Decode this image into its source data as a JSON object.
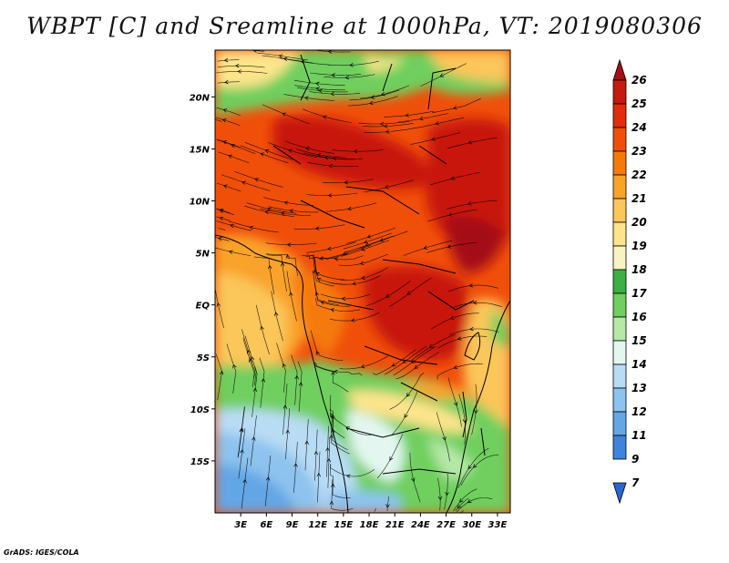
{
  "title": "WBPT [C] and Sreamline at 1000hPa, VT: 2019080306",
  "footer": "GrADS: IGES/COLA",
  "map": {
    "lat_labels": [
      "20N",
      "15N",
      "10N",
      "5N",
      "EQ",
      "5S",
      "10S",
      "15S"
    ],
    "lat_values": [
      20,
      15,
      10,
      5,
      0,
      -5,
      -10,
      -15
    ],
    "lon_labels": [
      "3E",
      "6E",
      "9E",
      "12E",
      "15E",
      "18E",
      "21E",
      "24E",
      "27E",
      "30E",
      "33E"
    ],
    "lon_values": [
      3,
      6,
      9,
      12,
      15,
      18,
      21,
      24,
      27,
      30,
      33
    ],
    "lat_range": [
      -20,
      24.5
    ],
    "lon_range": [
      0,
      34.5
    ]
  },
  "colorbar": {
    "levels": [
      "26",
      "25",
      "24",
      "23",
      "22",
      "21",
      "20",
      "19",
      "18",
      "17",
      "16",
      "15",
      "14",
      "13",
      "12",
      "11",
      "9",
      "7"
    ],
    "colors": [
      "#a50f15",
      "#c8190f",
      "#e02d0c",
      "#f04f0a",
      "#f57a0a",
      "#f9a32a",
      "#fbc65a",
      "#fde48c",
      "#f7f3c2",
      "#3cb043",
      "#6fcf5f",
      "#b6e8a8",
      "#e3f7f0",
      "#b9dcf5",
      "#8dc3ee",
      "#64a6e6",
      "#3f84dc",
      "#2a66d0"
    ]
  },
  "colors": {
    "coast": "#000000",
    "streamline": "#000000"
  }
}
